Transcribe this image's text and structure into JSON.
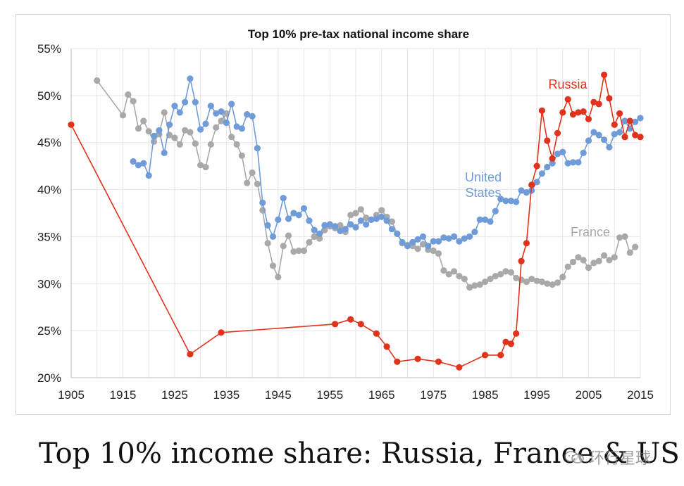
{
  "chart_data": {
    "type": "line",
    "title": "Top 10% pre-tax national income share",
    "xlim": [
      1905,
      2015
    ],
    "ylim": [
      20,
      55
    ],
    "x_ticks": [
      "1905",
      "1915",
      "1925",
      "1935",
      "1945",
      "1955",
      "1965",
      "1975",
      "1985",
      "1995",
      "2005",
      "2015"
    ],
    "y_ticks": [
      "20%",
      "25%",
      "30%",
      "35%",
      "40%",
      "45%",
      "50%",
      "55%"
    ],
    "grid": true,
    "series": [
      {
        "name": "Russia",
        "label": "Russia",
        "color": "#e0321c",
        "points": [
          [
            1905,
            46.9
          ],
          [
            1928,
            22.5
          ],
          [
            1934,
            24.8
          ],
          [
            1956,
            25.7
          ],
          [
            1959,
            26.2
          ],
          [
            1961,
            25.7
          ],
          [
            1964,
            24.7
          ],
          [
            1966,
            23.3
          ],
          [
            1968,
            21.7
          ],
          [
            1972,
            22.0
          ],
          [
            1976,
            21.7
          ],
          [
            1980,
            21.1
          ],
          [
            1985,
            22.4
          ],
          [
            1988,
            22.4
          ],
          [
            1989,
            23.8
          ],
          [
            1990,
            23.6
          ],
          [
            1991,
            24.7
          ],
          [
            1992,
            32.4
          ],
          [
            1993,
            34.3
          ],
          [
            1994,
            40.5
          ],
          [
            1995,
            42.5
          ],
          [
            1996,
            48.4
          ],
          [
            1997,
            45.2
          ],
          [
            1998,
            43.3
          ],
          [
            1999,
            46.0
          ],
          [
            2000,
            48.2
          ],
          [
            2001,
            49.6
          ],
          [
            2002,
            48.0
          ],
          [
            2003,
            48.2
          ],
          [
            2004,
            48.3
          ],
          [
            2005,
            47.5
          ],
          [
            2006,
            49.3
          ],
          [
            2007,
            49.1
          ],
          [
            2008,
            52.2
          ],
          [
            2009,
            49.7
          ],
          [
            2010,
            46.9
          ],
          [
            2011,
            48.1
          ],
          [
            2012,
            45.6
          ],
          [
            2013,
            47.3
          ],
          [
            2014,
            45.8
          ],
          [
            2015,
            45.6
          ]
        ]
      },
      {
        "name": "United States",
        "label": [
          "United",
          "States"
        ],
        "color": "#6f9bd8",
        "points": [
          [
            1917,
            43.0
          ],
          [
            1918,
            42.6
          ],
          [
            1919,
            42.8
          ],
          [
            1920,
            41.5
          ],
          [
            1921,
            45.7
          ],
          [
            1922,
            46.3
          ],
          [
            1923,
            43.9
          ],
          [
            1924,
            46.9
          ],
          [
            1925,
            48.9
          ],
          [
            1926,
            48.2
          ],
          [
            1927,
            49.3
          ],
          [
            1928,
            51.8
          ],
          [
            1929,
            49.3
          ],
          [
            1930,
            46.4
          ],
          [
            1931,
            47.0
          ],
          [
            1932,
            48.9
          ],
          [
            1933,
            48.1
          ],
          [
            1934,
            48.3
          ],
          [
            1935,
            47.1
          ],
          [
            1936,
            49.1
          ],
          [
            1937,
            46.7
          ],
          [
            1938,
            46.5
          ],
          [
            1939,
            48.0
          ],
          [
            1940,
            47.8
          ],
          [
            1941,
            44.4
          ],
          [
            1942,
            38.6
          ],
          [
            1943,
            36.2
          ],
          [
            1944,
            35.0
          ],
          [
            1945,
            36.8
          ],
          [
            1946,
            39.1
          ],
          [
            1947,
            36.9
          ],
          [
            1948,
            37.5
          ],
          [
            1949,
            37.3
          ],
          [
            1950,
            38.0
          ],
          [
            1951,
            36.7
          ],
          [
            1952,
            35.7
          ],
          [
            1953,
            35.3
          ],
          [
            1954,
            36.2
          ],
          [
            1955,
            36.3
          ],
          [
            1956,
            36.1
          ],
          [
            1957,
            35.6
          ],
          [
            1958,
            35.8
          ],
          [
            1959,
            36.3
          ],
          [
            1960,
            36.0
          ],
          [
            1961,
            36.7
          ],
          [
            1962,
            36.3
          ],
          [
            1963,
            36.8
          ],
          [
            1964,
            36.9
          ],
          [
            1965,
            37.1
          ],
          [
            1966,
            36.7
          ],
          [
            1967,
            35.8
          ],
          [
            1968,
            35.3
          ],
          [
            1969,
            34.4
          ],
          [
            1970,
            34.0
          ],
          [
            1971,
            34.4
          ],
          [
            1972,
            34.7
          ],
          [
            1973,
            35.0
          ],
          [
            1974,
            34.0
          ],
          [
            1975,
            34.5
          ],
          [
            1976,
            34.5
          ],
          [
            1977,
            34.9
          ],
          [
            1978,
            34.8
          ],
          [
            1979,
            35.0
          ],
          [
            1980,
            34.5
          ],
          [
            1981,
            34.8
          ],
          [
            1982,
            35.0
          ],
          [
            1983,
            35.5
          ],
          [
            1984,
            36.8
          ],
          [
            1985,
            36.8
          ],
          [
            1986,
            36.6
          ],
          [
            1987,
            37.7
          ],
          [
            1988,
            39.0
          ],
          [
            1989,
            38.8
          ],
          [
            1990,
            38.8
          ],
          [
            1991,
            38.7
          ],
          [
            1992,
            39.9
          ],
          [
            1993,
            39.7
          ],
          [
            1994,
            39.9
          ],
          [
            1995,
            40.8
          ],
          [
            1996,
            41.7
          ],
          [
            1997,
            42.4
          ],
          [
            1998,
            42.8
          ],
          [
            1999,
            43.8
          ],
          [
            2000,
            44.0
          ],
          [
            2001,
            42.8
          ],
          [
            2002,
            42.9
          ],
          [
            2003,
            42.9
          ],
          [
            2004,
            43.9
          ],
          [
            2005,
            45.2
          ],
          [
            2006,
            46.1
          ],
          [
            2007,
            45.8
          ],
          [
            2008,
            45.3
          ],
          [
            2009,
            44.5
          ],
          [
            2010,
            45.9
          ],
          [
            2011,
            46.1
          ],
          [
            2012,
            47.3
          ],
          [
            2013,
            46.5
          ],
          [
            2014,
            47.2
          ],
          [
            2015,
            47.6
          ]
        ]
      },
      {
        "name": "France",
        "label": "France",
        "color": "#a9a9a9",
        "points": [
          [
            1910,
            51.6
          ],
          [
            1915,
            47.9
          ],
          [
            1916,
            50.1
          ],
          [
            1917,
            49.4
          ],
          [
            1918,
            46.5
          ],
          [
            1919,
            47.3
          ],
          [
            1920,
            46.2
          ],
          [
            1921,
            45.1
          ],
          [
            1922,
            45.9
          ],
          [
            1923,
            48.2
          ],
          [
            1924,
            45.8
          ],
          [
            1925,
            45.5
          ],
          [
            1926,
            44.8
          ],
          [
            1927,
            46.3
          ],
          [
            1928,
            46.1
          ],
          [
            1929,
            44.9
          ],
          [
            1930,
            42.6
          ],
          [
            1931,
            42.4
          ],
          [
            1932,
            44.8
          ],
          [
            1933,
            46.6
          ],
          [
            1934,
            47.3
          ],
          [
            1935,
            48.1
          ],
          [
            1936,
            45.6
          ],
          [
            1937,
            44.8
          ],
          [
            1938,
            43.6
          ],
          [
            1939,
            40.7
          ],
          [
            1940,
            41.8
          ],
          [
            1941,
            40.6
          ],
          [
            1942,
            37.8
          ],
          [
            1943,
            34.3
          ],
          [
            1944,
            31.9
          ],
          [
            1945,
            30.7
          ],
          [
            1946,
            34.0
          ],
          [
            1947,
            35.1
          ],
          [
            1948,
            33.4
          ],
          [
            1949,
            33.5
          ],
          [
            1950,
            33.5
          ],
          [
            1951,
            34.4
          ],
          [
            1952,
            35.0
          ],
          [
            1953,
            34.8
          ],
          [
            1954,
            35.7
          ],
          [
            1955,
            36.1
          ],
          [
            1956,
            35.9
          ],
          [
            1957,
            36.2
          ],
          [
            1958,
            35.5
          ],
          [
            1959,
            37.3
          ],
          [
            1960,
            37.5
          ],
          [
            1961,
            37.9
          ],
          [
            1962,
            37.0
          ],
          [
            1963,
            36.8
          ],
          [
            1964,
            37.3
          ],
          [
            1965,
            37.8
          ],
          [
            1966,
            37.1
          ],
          [
            1967,
            36.6
          ],
          [
            1968,
            35.3
          ],
          [
            1969,
            34.3
          ],
          [
            1970,
            34.1
          ],
          [
            1971,
            34.0
          ],
          [
            1972,
            33.7
          ],
          [
            1973,
            34.2
          ],
          [
            1974,
            33.6
          ],
          [
            1975,
            33.5
          ],
          [
            1976,
            33.2
          ],
          [
            1977,
            31.4
          ],
          [
            1978,
            31.0
          ],
          [
            1979,
            31.3
          ],
          [
            1980,
            30.8
          ],
          [
            1981,
            30.5
          ],
          [
            1982,
            29.6
          ],
          [
            1983,
            29.8
          ],
          [
            1984,
            29.9
          ],
          [
            1985,
            30.2
          ],
          [
            1986,
            30.5
          ],
          [
            1987,
            30.8
          ],
          [
            1988,
            31.0
          ],
          [
            1989,
            31.3
          ],
          [
            1990,
            31.2
          ],
          [
            1991,
            30.6
          ],
          [
            1992,
            30.4
          ],
          [
            1993,
            30.2
          ],
          [
            1994,
            30.5
          ],
          [
            1995,
            30.3
          ],
          [
            1996,
            30.2
          ],
          [
            1997,
            30.0
          ],
          [
            1998,
            29.9
          ],
          [
            1999,
            30.1
          ],
          [
            2000,
            30.7
          ],
          [
            2001,
            31.8
          ],
          [
            2002,
            32.3
          ],
          [
            2003,
            32.8
          ],
          [
            2004,
            32.5
          ],
          [
            2005,
            31.7
          ],
          [
            2006,
            32.2
          ],
          [
            2007,
            32.4
          ],
          [
            2008,
            33.0
          ],
          [
            2009,
            32.5
          ],
          [
            2010,
            32.8
          ],
          [
            2011,
            34.9
          ],
          [
            2012,
            35.0
          ],
          [
            2013,
            33.3
          ],
          [
            2014,
            33.9
          ]
        ]
      }
    ]
  },
  "caption": "Top 10% income share: Russia, France & US",
  "watermark": "环行星球"
}
